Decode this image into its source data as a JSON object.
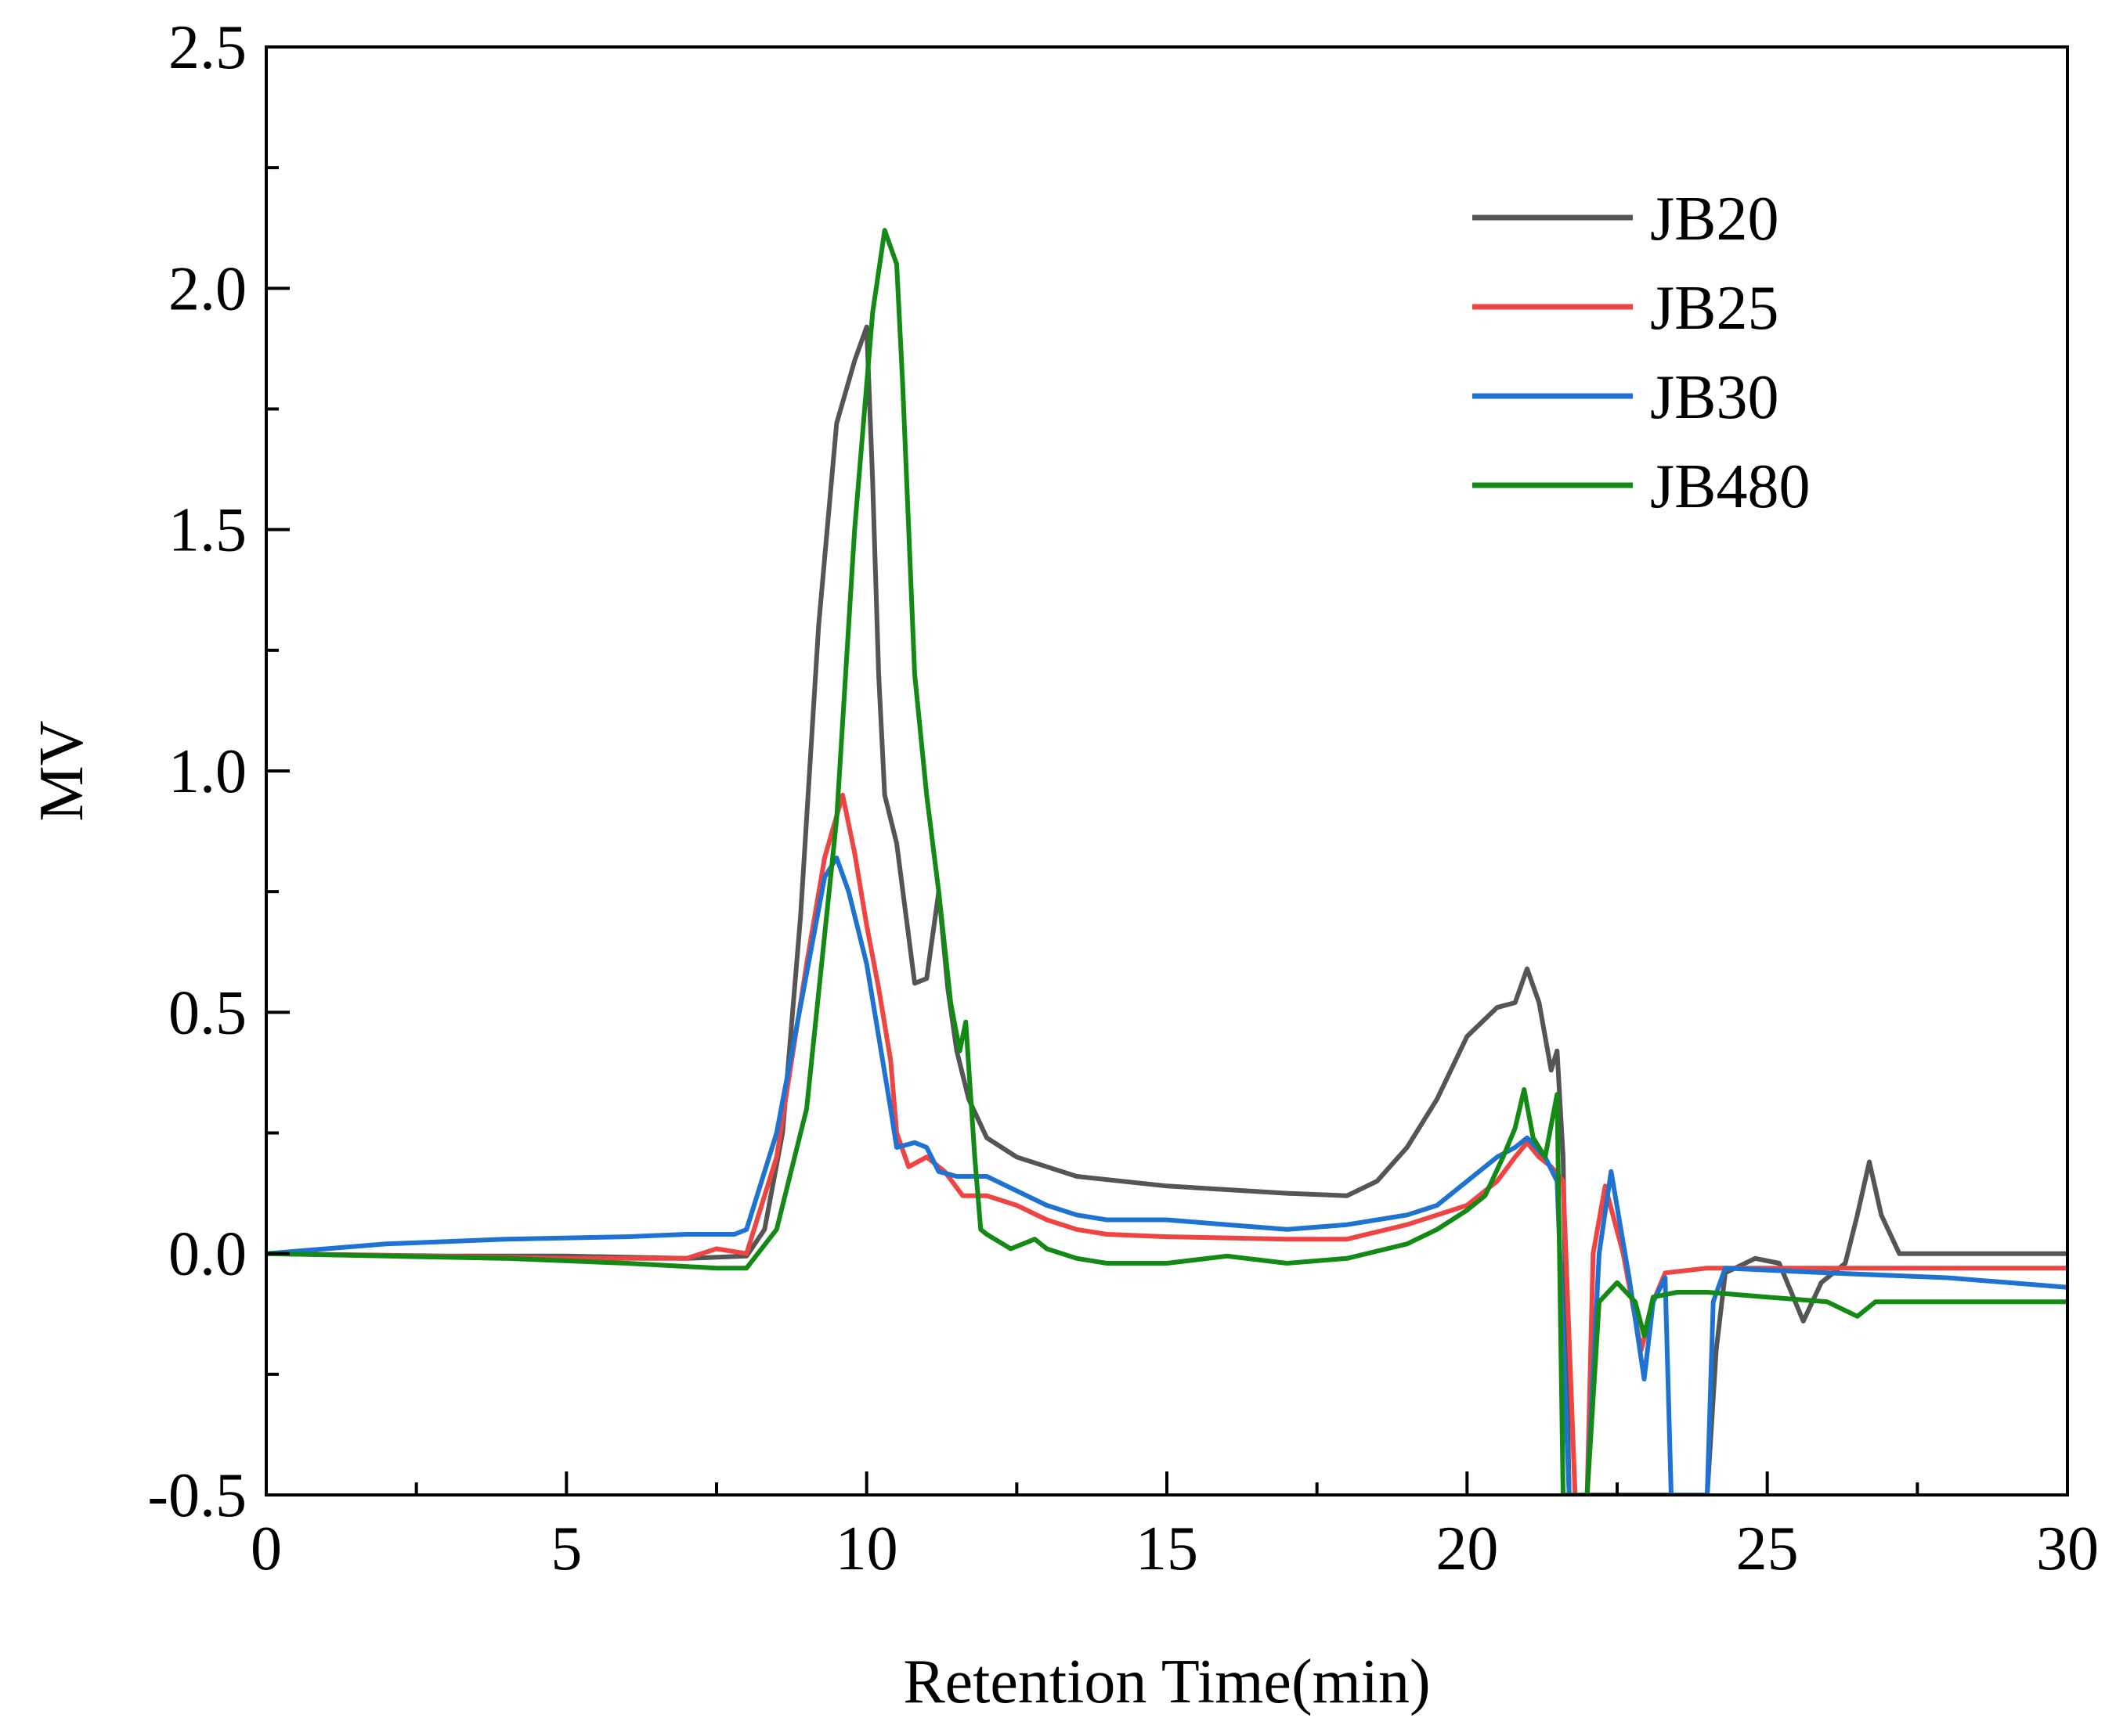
{
  "chart_data": {
    "type": "line",
    "title": "",
    "xlabel": "Retention Time(min)",
    "ylabel": "MV",
    "xlim": [
      0,
      30
    ],
    "ylim": [
      -0.5,
      2.5
    ],
    "grid": false,
    "legend_position": "top-right",
    "x_ticks": [
      0,
      5,
      10,
      15,
      20,
      25,
      30
    ],
    "x_tick_labels": [
      "0",
      "5",
      "10",
      "15",
      "20",
      "25",
      "30"
    ],
    "y_ticks": [
      -0.5,
      0.0,
      0.5,
      1.0,
      1.5,
      2.0,
      2.5
    ],
    "y_tick_labels": [
      "-0.5",
      "0.0",
      "0.5",
      "1.0",
      "1.5",
      "2.0",
      "2.5"
    ],
    "series": [
      {
        "name": "JB20",
        "color": "#555555",
        "points": [
          [
            0,
            0.0
          ],
          [
            3,
            -0.005
          ],
          [
            5,
            -0.005
          ],
          [
            7,
            -0.01
          ],
          [
            8,
            -0.005
          ],
          [
            8.3,
            0.05
          ],
          [
            8.6,
            0.25
          ],
          [
            8.9,
            0.7
          ],
          [
            9.2,
            1.3
          ],
          [
            9.5,
            1.72
          ],
          [
            9.8,
            1.85
          ],
          [
            10.0,
            1.92
          ],
          [
            10.1,
            1.6
          ],
          [
            10.2,
            1.2
          ],
          [
            10.3,
            0.95
          ],
          [
            10.5,
            0.85
          ],
          [
            10.8,
            0.56
          ],
          [
            11.0,
            0.57
          ],
          [
            11.2,
            0.75
          ],
          [
            11.35,
            0.55
          ],
          [
            11.5,
            0.42
          ],
          [
            11.7,
            0.32
          ],
          [
            12.0,
            0.24
          ],
          [
            12.5,
            0.2
          ],
          [
            13.0,
            0.18
          ],
          [
            13.5,
            0.16
          ],
          [
            15,
            0.14
          ],
          [
            17,
            0.125
          ],
          [
            18,
            0.12
          ],
          [
            18.5,
            0.15
          ],
          [
            19,
            0.22
          ],
          [
            19.5,
            0.32
          ],
          [
            20.0,
            0.45
          ],
          [
            20.5,
            0.51
          ],
          [
            20.8,
            0.52
          ],
          [
            21.0,
            0.59
          ],
          [
            21.2,
            0.52
          ],
          [
            21.4,
            0.38
          ],
          [
            21.5,
            0.42
          ],
          [
            21.6,
            0.2
          ],
          [
            21.7,
            -0.5
          ],
          [
            24.0,
            -0.5
          ],
          [
            24.15,
            -0.2
          ],
          [
            24.3,
            -0.04
          ],
          [
            24.8,
            -0.01
          ],
          [
            25.2,
            -0.02
          ],
          [
            25.6,
            -0.14
          ],
          [
            25.9,
            -0.06
          ],
          [
            26.3,
            -0.02
          ],
          [
            26.5,
            0.08
          ],
          [
            26.7,
            0.19
          ],
          [
            26.9,
            0.08
          ],
          [
            27.2,
            0.0
          ],
          [
            30,
            0.0
          ]
        ]
      },
      {
        "name": "JB25",
        "color": "#ee4444",
        "points": [
          [
            0,
            0.0
          ],
          [
            5,
            -0.01
          ],
          [
            7,
            -0.01
          ],
          [
            7.5,
            0.01
          ],
          [
            8.0,
            0.0
          ],
          [
            8.5,
            0.2
          ],
          [
            9.0,
            0.6
          ],
          [
            9.3,
            0.82
          ],
          [
            9.6,
            0.95
          ],
          [
            9.8,
            0.83
          ],
          [
            10.0,
            0.68
          ],
          [
            10.2,
            0.55
          ],
          [
            10.4,
            0.4
          ],
          [
            10.5,
            0.25
          ],
          [
            10.7,
            0.18
          ],
          [
            11.0,
            0.2
          ],
          [
            11.3,
            0.17
          ],
          [
            11.6,
            0.12
          ],
          [
            12.0,
            0.12
          ],
          [
            12.5,
            0.1
          ],
          [
            13.0,
            0.07
          ],
          [
            13.5,
            0.05
          ],
          [
            14.0,
            0.04
          ],
          [
            15,
            0.035
          ],
          [
            17,
            0.03
          ],
          [
            18,
            0.03
          ],
          [
            19,
            0.06
          ],
          [
            20,
            0.1
          ],
          [
            20.5,
            0.15
          ],
          [
            20.8,
            0.2
          ],
          [
            21.0,
            0.23
          ],
          [
            21.2,
            0.2
          ],
          [
            21.4,
            0.18
          ],
          [
            21.6,
            0.15
          ],
          [
            21.8,
            -0.5
          ],
          [
            22.0,
            -0.5
          ],
          [
            22.1,
            0.0
          ],
          [
            22.3,
            0.14
          ],
          [
            22.6,
            0.0
          ],
          [
            22.9,
            -0.2
          ],
          [
            23.1,
            -0.1
          ],
          [
            23.3,
            -0.04
          ],
          [
            24,
            -0.03
          ],
          [
            25,
            -0.03
          ],
          [
            30,
            -0.03
          ]
        ]
      },
      {
        "name": "JB30",
        "color": "#1e73d2",
        "points": [
          [
            0,
            0.0
          ],
          [
            2,
            0.02
          ],
          [
            4,
            0.03
          ],
          [
            6,
            0.035
          ],
          [
            7,
            0.04
          ],
          [
            7.8,
            0.04
          ],
          [
            8.0,
            0.05
          ],
          [
            8.5,
            0.25
          ],
          [
            9.0,
            0.58
          ],
          [
            9.3,
            0.78
          ],
          [
            9.5,
            0.82
          ],
          [
            9.7,
            0.75
          ],
          [
            10.0,
            0.6
          ],
          [
            10.2,
            0.45
          ],
          [
            10.4,
            0.3
          ],
          [
            10.5,
            0.22
          ],
          [
            10.8,
            0.23
          ],
          [
            11.0,
            0.22
          ],
          [
            11.2,
            0.17
          ],
          [
            11.5,
            0.16
          ],
          [
            12.0,
            0.16
          ],
          [
            12.5,
            0.13
          ],
          [
            13.0,
            0.1
          ],
          [
            13.5,
            0.08
          ],
          [
            14,
            0.07
          ],
          [
            15,
            0.07
          ],
          [
            16,
            0.06
          ],
          [
            17,
            0.05
          ],
          [
            18,
            0.06
          ],
          [
            19,
            0.08
          ],
          [
            19.5,
            0.1
          ],
          [
            20,
            0.15
          ],
          [
            20.5,
            0.2
          ],
          [
            20.8,
            0.22
          ],
          [
            21.0,
            0.24
          ],
          [
            21.3,
            0.2
          ],
          [
            21.5,
            0.15
          ],
          [
            21.7,
            -0.5
          ],
          [
            22.0,
            -0.5
          ],
          [
            22.2,
            0.0
          ],
          [
            22.4,
            0.17
          ],
          [
            22.7,
            -0.05
          ],
          [
            22.95,
            -0.26
          ],
          [
            23.1,
            -0.1
          ],
          [
            23.3,
            -0.05
          ],
          [
            23.4,
            -0.5
          ],
          [
            23.6,
            -0.5
          ],
          [
            24.0,
            -0.5
          ],
          [
            24.1,
            -0.1
          ],
          [
            24.3,
            -0.03
          ],
          [
            26,
            -0.04
          ],
          [
            28,
            -0.05
          ],
          [
            30,
            -0.07
          ]
        ]
      },
      {
        "name": "JB480",
        "color": "#138a13",
        "points": [
          [
            0,
            0.0
          ],
          [
            2,
            -0.005
          ],
          [
            4,
            -0.01
          ],
          [
            6,
            -0.02
          ],
          [
            7.5,
            -0.03
          ],
          [
            8.0,
            -0.03
          ],
          [
            8.5,
            0.05
          ],
          [
            9.0,
            0.3
          ],
          [
            9.5,
            0.9
          ],
          [
            9.8,
            1.5
          ],
          [
            10.1,
            1.95
          ],
          [
            10.3,
            2.12
          ],
          [
            10.5,
            2.05
          ],
          [
            10.6,
            1.8
          ],
          [
            10.8,
            1.2
          ],
          [
            11.0,
            0.95
          ],
          [
            11.2,
            0.75
          ],
          [
            11.4,
            0.52
          ],
          [
            11.55,
            0.42
          ],
          [
            11.65,
            0.48
          ],
          [
            11.8,
            0.2
          ],
          [
            11.9,
            0.05
          ],
          [
            12.0,
            0.04
          ],
          [
            12.4,
            0.01
          ],
          [
            12.8,
            0.03
          ],
          [
            13.0,
            0.01
          ],
          [
            13.5,
            -0.01
          ],
          [
            14,
            -0.02
          ],
          [
            15,
            -0.02
          ],
          [
            16,
            -0.005
          ],
          [
            17,
            -0.02
          ],
          [
            18,
            -0.01
          ],
          [
            19,
            0.02
          ],
          [
            19.5,
            0.05
          ],
          [
            20,
            0.09
          ],
          [
            20.3,
            0.12
          ],
          [
            20.6,
            0.2
          ],
          [
            20.8,
            0.26
          ],
          [
            20.95,
            0.34
          ],
          [
            21.1,
            0.24
          ],
          [
            21.3,
            0.2
          ],
          [
            21.5,
            0.33
          ],
          [
            21.6,
            -0.5
          ],
          [
            22.0,
            -0.5
          ],
          [
            22.2,
            -0.1
          ],
          [
            22.5,
            -0.06
          ],
          [
            22.8,
            -0.1
          ],
          [
            22.95,
            -0.17
          ],
          [
            23.1,
            -0.09
          ],
          [
            23.5,
            -0.08
          ],
          [
            24,
            -0.08
          ],
          [
            25,
            -0.09
          ],
          [
            26,
            -0.1
          ],
          [
            26.5,
            -0.13
          ],
          [
            26.8,
            -0.1
          ],
          [
            27,
            -0.1
          ],
          [
            30,
            -0.1
          ]
        ]
      }
    ]
  }
}
